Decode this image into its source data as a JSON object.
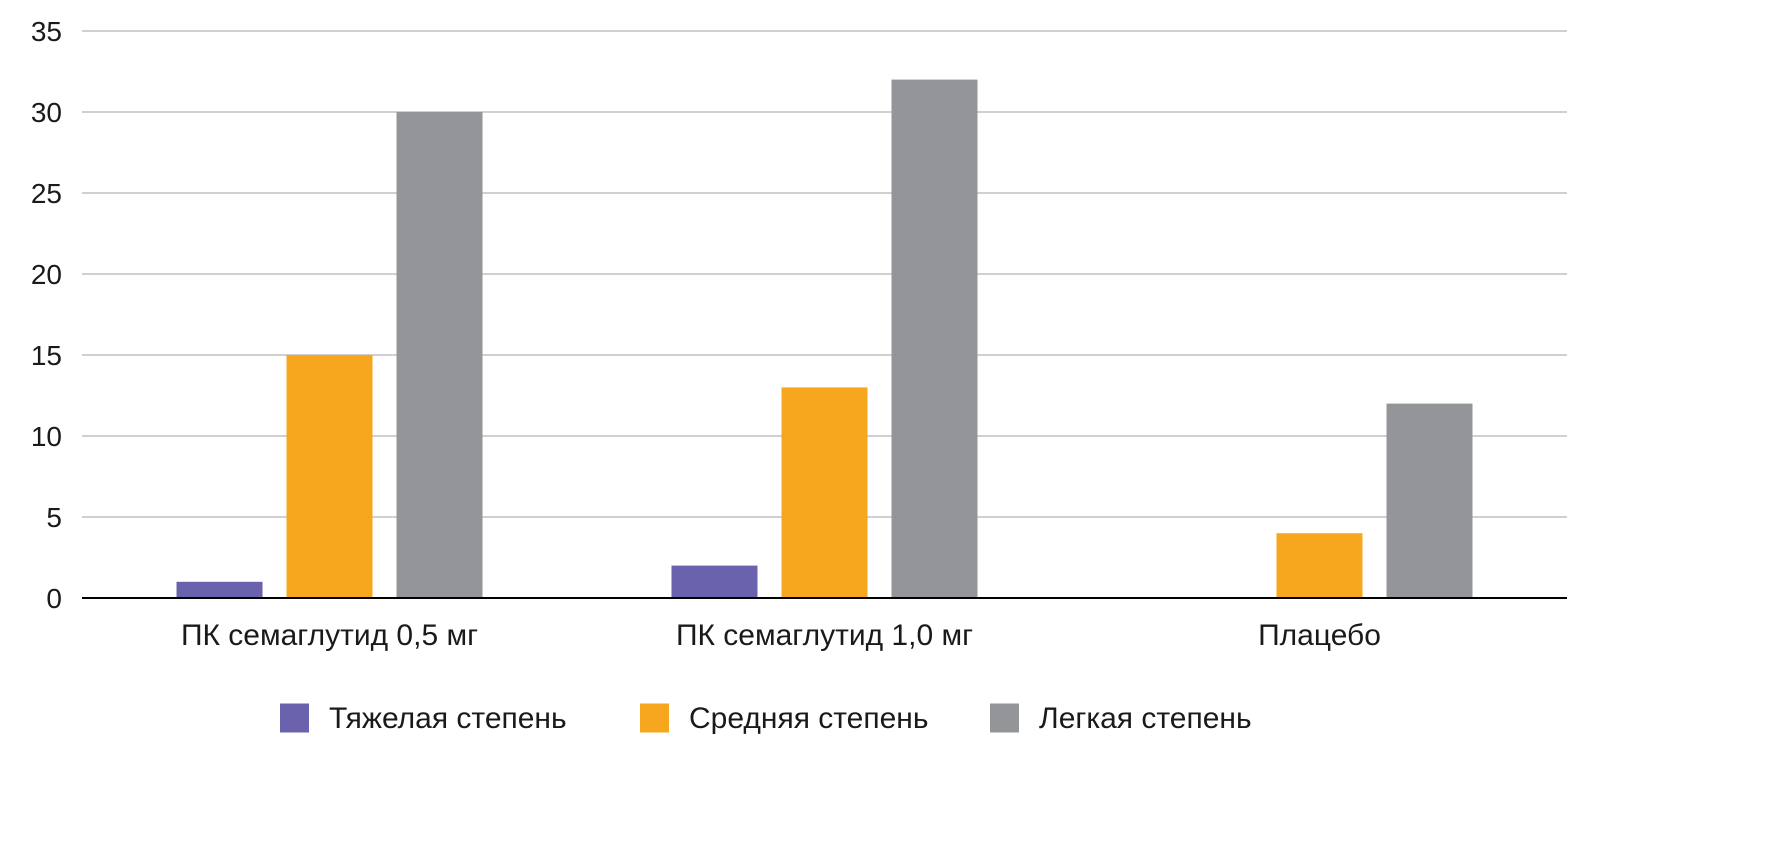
{
  "chart_data": {
    "type": "bar",
    "title": "",
    "xlabel": "",
    "ylabel": "",
    "categories": [
      "ПК семаглутид 0,5 мг",
      "ПК семаглутид 1,0 мг",
      "Плацебо"
    ],
    "series": [
      {
        "name": "Тяжелая степень",
        "color": "#6b62ad",
        "values": [
          1,
          2,
          0
        ]
      },
      {
        "name": "Средняя степень",
        "color": "#f6a71d",
        "values": [
          15,
          13,
          4
        ]
      },
      {
        "name": "Легкая степень",
        "color": "#939598",
        "values": [
          30,
          32,
          12
        ]
      }
    ],
    "ylim": [
      0,
      35
    ],
    "yticks": [
      0,
      5,
      10,
      15,
      20,
      25,
      30,
      35
    ],
    "grid": true,
    "legend_position": "bottom"
  }
}
